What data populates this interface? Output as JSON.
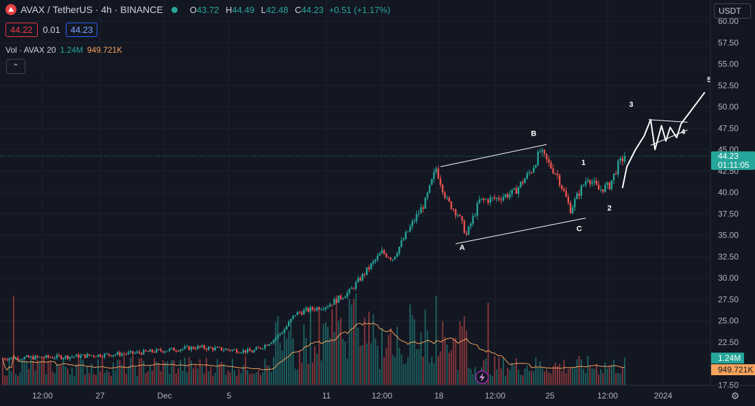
{
  "header": {
    "symbol": "AVAX / TetherUS · 4h · BINANCE",
    "ohlc": {
      "o_label": "O",
      "o": "43.72",
      "h_label": "H",
      "h": "44.49",
      "l_label": "L",
      "l": "42.48",
      "c_label": "C",
      "c": "44.23",
      "change": "+0.51 (+1.17%)"
    },
    "sell_price": "44.22",
    "spread": "0.01",
    "buy_price": "44.23"
  },
  "volume_legend": {
    "label": "Vol · AVAX 20",
    "value": "1.24M",
    "ma_value": "949.721K"
  },
  "currency_button": "USDT",
  "colors": {
    "up": "#26a69a",
    "down": "#ef5350",
    "ma": "#f7a35c",
    "bg": "#131722",
    "price_line": "#26a69a"
  },
  "chart_data": {
    "type": "candlestick",
    "price_axis": {
      "min": 17.5,
      "max": 60,
      "ticks": [
        "17.50",
        "22.50",
        "25.00",
        "27.50",
        "30.00",
        "32.50",
        "35.00",
        "37.50",
        "40.00",
        "42.50",
        "45.00",
        "47.50",
        "50.00",
        "52.50",
        "55.00",
        "57.50",
        "60.00"
      ]
    },
    "time_axis": {
      "ticks": [
        "12:00",
        "27",
        "Dec",
        "5",
        "11",
        "12:00",
        "18",
        "12:00",
        "25",
        "12:00",
        "2024"
      ]
    },
    "last_price": {
      "value": "44.23",
      "countdown": "01:11:05"
    },
    "volume_last": "1.24M",
    "volume_ma_last": "949.721K",
    "key_levels": [
      {
        "t": 0,
        "v": 20.6
      },
      {
        "t": 30,
        "v": 20.8
      },
      {
        "t": 60,
        "v": 21.2
      },
      {
        "t": 90,
        "v": 21.9
      },
      {
        "t": 115,
        "v": 21.4
      },
      {
        "t": 120,
        "v": 22.0
      },
      {
        "t": 125,
        "v": 22.8
      },
      {
        "t": 130,
        "v": 24.0
      },
      {
        "t": 135,
        "v": 25.8
      },
      {
        "t": 140,
        "v": 26.2
      },
      {
        "t": 150,
        "v": 26.8
      },
      {
        "t": 160,
        "v": 28.4
      },
      {
        "t": 170,
        "v": 31.5
      },
      {
        "t": 175,
        "v": 33.0
      },
      {
        "t": 180,
        "v": 32.3
      },
      {
        "t": 190,
        "v": 36.8
      },
      {
        "t": 195,
        "v": 38.9
      },
      {
        "t": 200,
        "v": 42.8
      },
      {
        "t": 205,
        "v": 39.0
      },
      {
        "t": 210,
        "v": 37.5
      },
      {
        "t": 214,
        "v": 35.0
      },
      {
        "t": 220,
        "v": 39.0
      },
      {
        "t": 228,
        "v": 39.3
      },
      {
        "t": 236,
        "v": 40.0
      },
      {
        "t": 244,
        "v": 42.6
      },
      {
        "t": 248,
        "v": 44.8
      },
      {
        "t": 252,
        "v": 43.3
      },
      {
        "t": 256,
        "v": 42.0
      },
      {
        "t": 262,
        "v": 38.0
      },
      {
        "t": 266,
        "v": 40.0
      },
      {
        "t": 270,
        "v": 41.8
      },
      {
        "t": 275,
        "v": 40.3
      },
      {
        "t": 280,
        "v": 40.8
      },
      {
        "t": 284,
        "v": 43.2
      },
      {
        "t": 287,
        "v": 44.23
      }
    ],
    "annotations": {
      "labels": [
        {
          "text": "A",
          "t": 212,
          "v": 33.3
        },
        {
          "text": "B",
          "t": 245,
          "v": 46.6
        },
        {
          "text": "C",
          "t": 266,
          "v": 35.5
        },
        {
          "text": "1",
          "t": 268,
          "v": 43.2
        },
        {
          "text": "2",
          "t": 280,
          "v": 37.9
        },
        {
          "text": "3",
          "t": 290,
          "v": 50.0
        },
        {
          "text": "4",
          "t": 314,
          "v": 46.8
        },
        {
          "text": "5",
          "t": 326,
          "v": 52.9
        }
      ],
      "channel_upper": [
        {
          "t": 202,
          "v": 43.0
        },
        {
          "t": 251,
          "v": 45.6
        }
      ],
      "channel_lower": [
        {
          "t": 209,
          "v": 34.0
        },
        {
          "t": 269,
          "v": 37.0
        }
      ],
      "projection": [
        {
          "t": 286,
          "v": 40.5
        },
        {
          "t": 288,
          "v": 43.0
        },
        {
          "t": 292,
          "v": 45.0
        },
        {
          "t": 296,
          "v": 46.6
        },
        {
          "t": 299,
          "v": 48.5
        },
        {
          "t": 301,
          "v": 45.0
        },
        {
          "t": 304,
          "v": 47.8
        },
        {
          "t": 306,
          "v": 46.0
        },
        {
          "t": 308,
          "v": 47.6
        },
        {
          "t": 311,
          "v": 46.4
        },
        {
          "t": 313,
          "v": 48.0
        },
        {
          "t": 324,
          "v": 51.7
        }
      ],
      "triangle_top": [
        {
          "t": 298,
          "v": 48.5
        },
        {
          "t": 316,
          "v": 48.2
        }
      ],
      "triangle_bottom": [
        {
          "t": 299,
          "v": 45.5
        },
        {
          "t": 316,
          "v": 47.3
        }
      ]
    }
  }
}
